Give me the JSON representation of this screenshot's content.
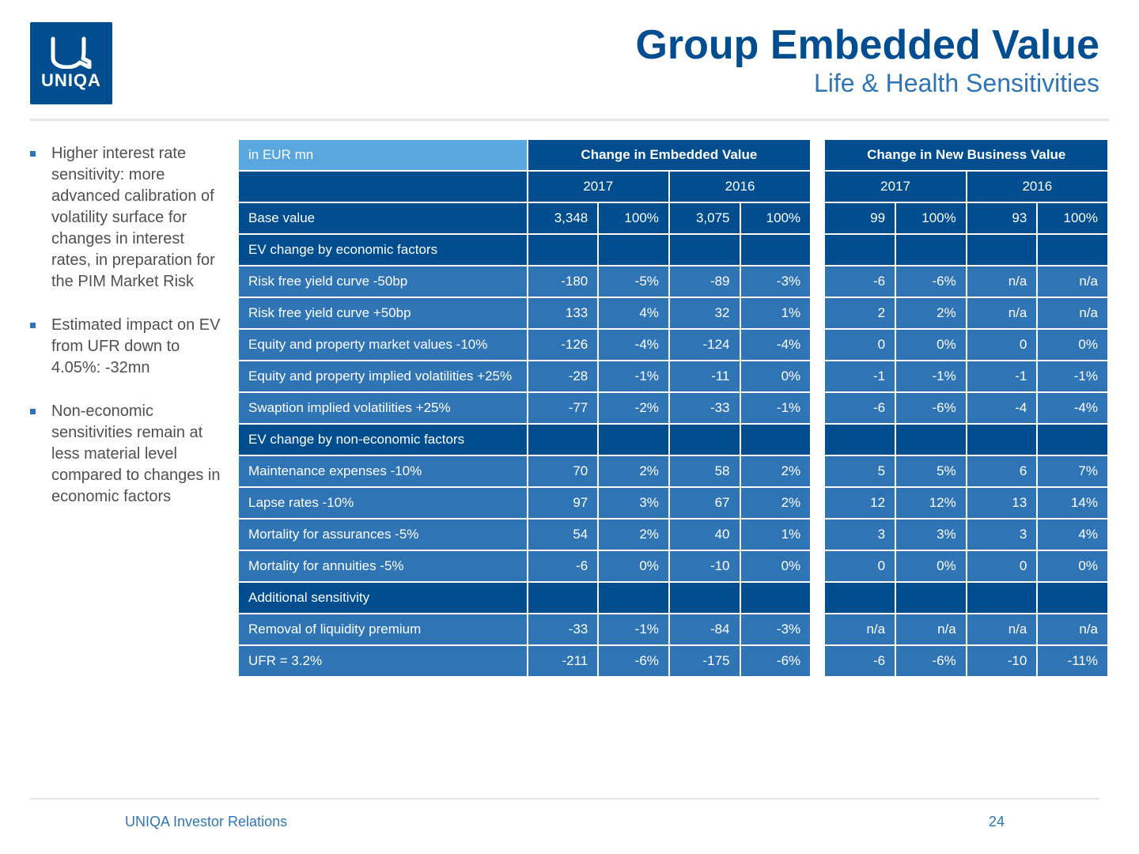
{
  "logo": {
    "brand": "UNIQA"
  },
  "title": {
    "main": "Group Embedded Value",
    "sub": "Life & Health Sensitivities"
  },
  "bullets": [
    "Higher interest rate sensitivity: more advanced calibration of volatility surface for changes in interest rates, in preparation for the PIM Market Risk",
    "Estimated impact on EV from UFR down to 4.05%: -32mn",
    "Non-economic sensitivities remain at less material level compared to changes in economic factors"
  ],
  "table": {
    "unit_label": "in EUR mn",
    "groups": [
      "Change in Embedded Value",
      "Change in New Business Value"
    ],
    "years": [
      "2017",
      "2016",
      "2017",
      "2016"
    ],
    "colors": {
      "header_corner_bg": "#5aa7e0",
      "header_bg": "#004d8f",
      "section_bg": "#004d8f",
      "data_bg": "#2f75b5",
      "text": "#ffffff"
    },
    "rows": [
      {
        "type": "section",
        "label": "Base value",
        "cells": [
          "3,348",
          "100%",
          "3,075",
          "100%",
          "99",
          "100%",
          "93",
          "100%"
        ]
      },
      {
        "type": "section",
        "label": "EV change by economic factors",
        "cells": [
          "",
          "",
          "",
          "",
          "",
          "",
          "",
          ""
        ]
      },
      {
        "type": "data",
        "label": "Risk free yield curve -50bp",
        "cells": [
          "-180",
          "-5%",
          "-89",
          "-3%",
          "-6",
          "-6%",
          "n/a",
          "n/a"
        ]
      },
      {
        "type": "data",
        "label": "Risk free yield curve +50bp",
        "cells": [
          "133",
          "4%",
          "32",
          "1%",
          "2",
          "2%",
          "n/a",
          "n/a"
        ]
      },
      {
        "type": "data",
        "label": "Equity and property market values -10%",
        "cells": [
          "-126",
          "-4%",
          "-124",
          "-4%",
          "0",
          "0%",
          "0",
          "0%"
        ]
      },
      {
        "type": "data",
        "label": "Equity and property implied volatilities +25%",
        "cells": [
          "-28",
          "-1%",
          "-11",
          "0%",
          "-1",
          "-1%",
          "-1",
          "-1%"
        ]
      },
      {
        "type": "data",
        "label": "Swaption implied volatilities +25%",
        "cells": [
          "-77",
          "-2%",
          "-33",
          "-1%",
          "-6",
          "-6%",
          "-4",
          "-4%"
        ]
      },
      {
        "type": "section",
        "label": "EV change by non-economic factors",
        "cells": [
          "",
          "",
          "",
          "",
          "",
          "",
          "",
          ""
        ]
      },
      {
        "type": "data",
        "label": "Maintenance expenses -10%",
        "cells": [
          "70",
          "2%",
          "58",
          "2%",
          "5",
          "5%",
          "6",
          "7%"
        ]
      },
      {
        "type": "data",
        "label": "Lapse rates -10%",
        "cells": [
          "97",
          "3%",
          "67",
          "2%",
          "12",
          "12%",
          "13",
          "14%"
        ]
      },
      {
        "type": "data",
        "label": "Mortality for assurances -5%",
        "cells": [
          "54",
          "2%",
          "40",
          "1%",
          "3",
          "3%",
          "3",
          "4%"
        ]
      },
      {
        "type": "data",
        "label": "Mortality for annuities -5%",
        "cells": [
          "-6",
          "0%",
          "-10",
          "0%",
          "0",
          "0%",
          "0",
          "0%"
        ]
      },
      {
        "type": "section",
        "label": "Additional sensitivity",
        "cells": [
          "",
          "",
          "",
          "",
          "",
          "",
          "",
          ""
        ]
      },
      {
        "type": "data",
        "label": "Removal of liquidity premium",
        "cells": [
          "-33",
          "-1%",
          "-84",
          "-3%",
          "n/a",
          "n/a",
          "n/a",
          "n/a"
        ]
      },
      {
        "type": "data",
        "label": "UFR = 3.2%",
        "cells": [
          "-211",
          "-6%",
          "-175",
          "-6%",
          "-6",
          "-6%",
          "-10",
          "-11%"
        ]
      }
    ]
  },
  "footer": {
    "text": "UNIQA Investor Relations",
    "page": "24"
  }
}
